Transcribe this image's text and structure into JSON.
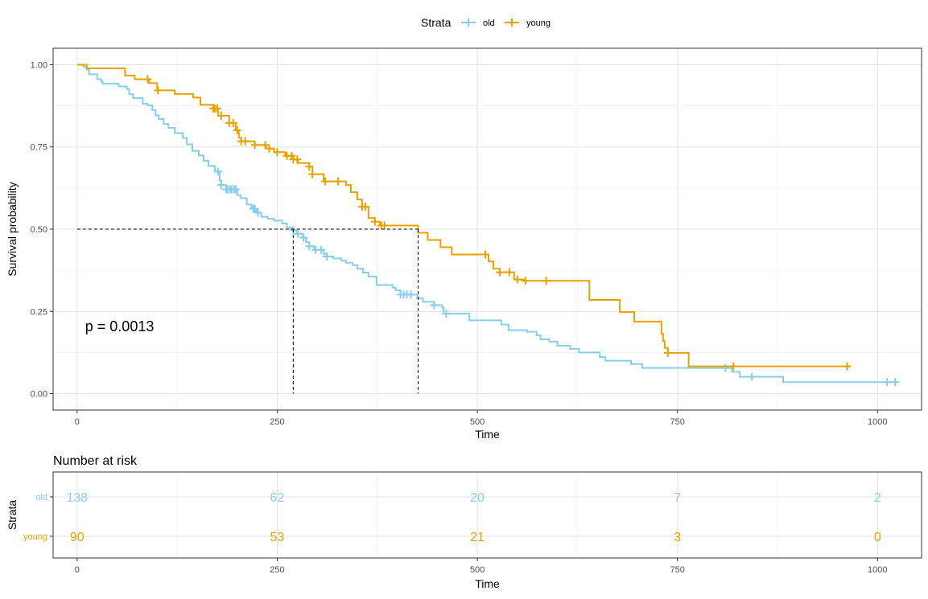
{
  "legend": {
    "title": "Strata",
    "entries": [
      {
        "name": "old",
        "color": "#87CEEB"
      },
      {
        "name": "young",
        "color": "#E7A200"
      }
    ],
    "placement": "top"
  },
  "chart_data": [
    {
      "type": "line",
      "subtype": "kaplan-meier step",
      "xlabel": "Time",
      "ylabel": "Survival probability",
      "xlim": [
        -30,
        1055
      ],
      "ylim": [
        -0.05,
        1.05
      ],
      "xticks": [
        0,
        250,
        500,
        750,
        1000
      ],
      "yticks": [
        "0.00",
        "0.25",
        "0.50",
        "0.75",
        "1.00"
      ],
      "grid": true,
      "annotation": "p = 0.0013",
      "median_line": {
        "y": 0.5,
        "x_old": 270,
        "x_young": 426
      },
      "series": [
        {
          "name": "old",
          "color": "#87CEEB",
          "steps": [
            [
              0,
              1.0
            ],
            [
              8,
              0.993
            ],
            [
              12,
              0.985
            ],
            [
              15,
              0.971
            ],
            [
              25,
              0.956
            ],
            [
              30,
              0.949
            ],
            [
              32,
              0.942
            ],
            [
              52,
              0.934
            ],
            [
              62,
              0.926
            ],
            [
              65,
              0.91
            ],
            [
              70,
              0.898
            ],
            [
              82,
              0.881
            ],
            [
              88,
              0.876
            ],
            [
              94,
              0.862
            ],
            [
              98,
              0.846
            ],
            [
              102,
              0.835
            ],
            [
              108,
              0.82
            ],
            [
              114,
              0.808
            ],
            [
              122,
              0.792
            ],
            [
              132,
              0.777
            ],
            [
              137,
              0.758
            ],
            [
              144,
              0.738
            ],
            [
              152,
              0.724
            ],
            [
              158,
              0.708
            ],
            [
              164,
              0.692
            ],
            [
              172,
              0.675
            ],
            [
              178,
              0.648
            ],
            [
              180,
              0.634
            ],
            [
              186,
              0.621
            ],
            [
              200,
              0.604
            ],
            [
              204,
              0.594
            ],
            [
              212,
              0.575
            ],
            [
              218,
              0.562
            ],
            [
              224,
              0.55
            ],
            [
              230,
              0.538
            ],
            [
              238,
              0.532
            ],
            [
              246,
              0.526
            ],
            [
              256,
              0.517
            ],
            [
              262,
              0.505
            ],
            [
              268,
              0.497
            ],
            [
              274,
              0.486
            ],
            [
              282,
              0.474
            ],
            [
              286,
              0.461
            ],
            [
              290,
              0.448
            ],
            [
              296,
              0.437
            ],
            [
              308,
              0.424
            ],
            [
              312,
              0.417
            ],
            [
              320,
              0.411
            ],
            [
              330,
              0.404
            ],
            [
              336,
              0.398
            ],
            [
              344,
              0.391
            ],
            [
              350,
              0.38
            ],
            [
              357,
              0.368
            ],
            [
              364,
              0.356
            ],
            [
              374,
              0.33
            ],
            [
              394,
              0.322
            ],
            [
              398,
              0.314
            ],
            [
              404,
              0.301
            ],
            [
              425,
              0.29
            ],
            [
              432,
              0.279
            ],
            [
              446,
              0.269
            ],
            [
              456,
              0.262
            ],
            [
              458,
              0.243
            ],
            [
              490,
              0.223
            ],
            [
              530,
              0.21
            ],
            [
              539,
              0.193
            ],
            [
              562,
              0.188
            ],
            [
              574,
              0.177
            ],
            [
              579,
              0.165
            ],
            [
              590,
              0.158
            ],
            [
              600,
              0.146
            ],
            [
              616,
              0.136
            ],
            [
              627,
              0.125
            ],
            [
              653,
              0.111
            ],
            [
              660,
              0.1
            ],
            [
              692,
              0.09
            ],
            [
              706,
              0.078
            ],
            [
              818,
              0.066
            ],
            [
              828,
              0.051
            ],
            [
              882,
              0.035
            ],
            [
              1025,
              0.035
            ]
          ],
          "censor_times": [
            176,
            180,
            186,
            188,
            191,
            193,
            196,
            198,
            220,
            222,
            226,
            270,
            276,
            283,
            290,
            298,
            305,
            312,
            404,
            408,
            412,
            417,
            446,
            461,
            810,
            843,
            1012,
            1022
          ]
        },
        {
          "name": "young",
          "color": "#E7A200",
          "steps": [
            [
              0,
              1.0
            ],
            [
              12,
              0.989
            ],
            [
              60,
              0.967
            ],
            [
              72,
              0.956
            ],
            [
              90,
              0.944
            ],
            [
              100,
              0.922
            ],
            [
              122,
              0.911
            ],
            [
              145,
              0.9
            ],
            [
              154,
              0.878
            ],
            [
              170,
              0.867
            ],
            [
              176,
              0.845
            ],
            [
              190,
              0.823
            ],
            [
              198,
              0.801
            ],
            [
              202,
              0.778
            ],
            [
              205,
              0.767
            ],
            [
              222,
              0.756
            ],
            [
              236,
              0.745
            ],
            [
              246,
              0.734
            ],
            [
              260,
              0.723
            ],
            [
              270,
              0.712
            ],
            [
              276,
              0.701
            ],
            [
              290,
              0.69
            ],
            [
              294,
              0.667
            ],
            [
              308,
              0.645
            ],
            [
              336,
              0.634
            ],
            [
              342,
              0.612
            ],
            [
              350,
              0.59
            ],
            [
              356,
              0.568
            ],
            [
              364,
              0.534
            ],
            [
              372,
              0.523
            ],
            [
              378,
              0.511
            ],
            [
              426,
              0.489
            ],
            [
              438,
              0.467
            ],
            [
              454,
              0.445
            ],
            [
              468,
              0.423
            ],
            [
              514,
              0.402
            ],
            [
              520,
              0.38
            ],
            [
              528,
              0.369
            ],
            [
              546,
              0.347
            ],
            [
              558,
              0.343
            ],
            [
              640,
              0.285
            ],
            [
              678,
              0.248
            ],
            [
              696,
              0.219
            ],
            [
              730,
              0.182
            ],
            [
              732,
              0.16
            ],
            [
              734,
              0.139
            ],
            [
              738,
              0.124
            ],
            [
              764,
              0.083
            ],
            [
              965,
              0.083
            ]
          ],
          "censor_times": [
            88,
            101,
            170,
            172,
            175,
            180,
            190,
            195,
            200,
            205,
            210,
            222,
            235,
            240,
            250,
            262,
            268,
            270,
            275,
            290,
            294,
            310,
            326,
            356,
            360,
            372,
            380,
            384,
            510,
            528,
            540,
            550,
            560,
            586,
            738,
            820,
            962
          ]
        }
      ]
    },
    {
      "type": "table",
      "title": "Number at risk",
      "xlabel": "Time",
      "ylabel": "Strata",
      "xticks": [
        0,
        250,
        500,
        750,
        1000
      ],
      "rows": [
        {
          "name": "old",
          "color": "#87CEEB",
          "values": [
            "138",
            "62",
            "20",
            "7",
            "2"
          ]
        },
        {
          "name": "young",
          "color": "#E7A200",
          "values": [
            "90",
            "53",
            "21",
            "3",
            "0"
          ]
        }
      ]
    }
  ]
}
